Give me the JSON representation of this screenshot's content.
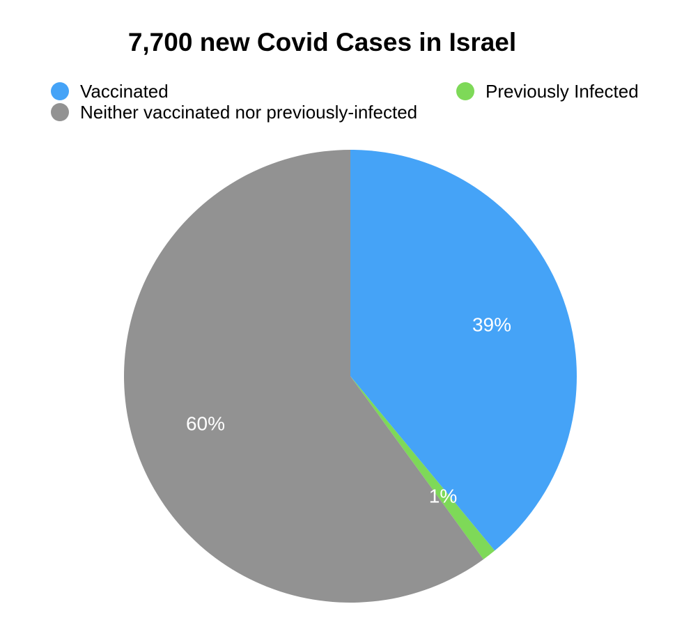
{
  "chart_data": {
    "type": "pie",
    "title": "7,700 new Covid Cases in Israel",
    "legend_position": "top",
    "slices": [
      {
        "label": "Vaccinated",
        "value": 39,
        "display": "39%",
        "color": "#45a3f7"
      },
      {
        "label": "Previously Infected",
        "value": 1,
        "display": "1%",
        "color": "#7ed958"
      },
      {
        "label": "Neither vaccinated nor previously-infected",
        "value": 60,
        "display": "60%",
        "color": "#929292"
      }
    ]
  }
}
